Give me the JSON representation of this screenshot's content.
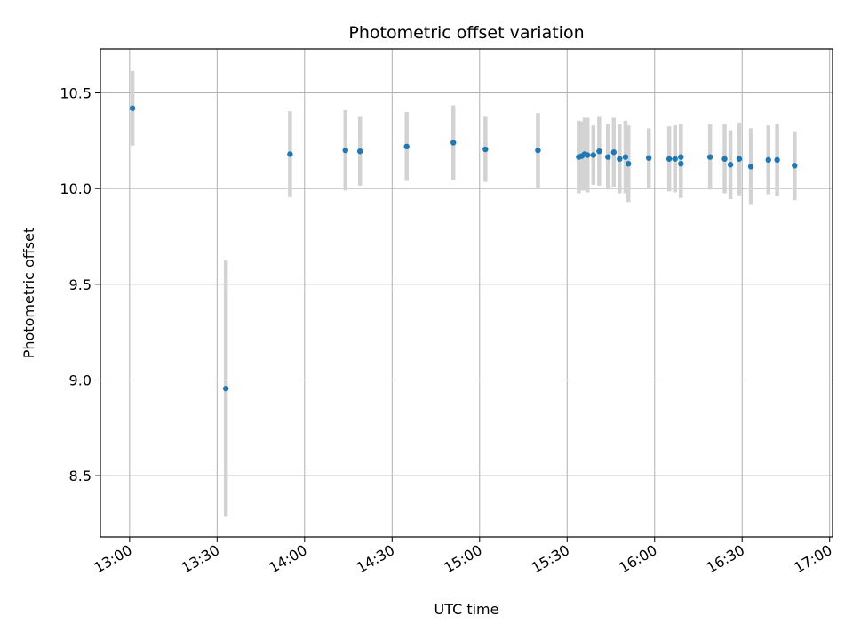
{
  "chart_data": {
    "type": "scatter",
    "title": "Photometric offset variation",
    "xlabel": "UTC time",
    "ylabel": "Photometric offset",
    "x_ticks": [
      "13:00",
      "13:30",
      "14:00",
      "14:30",
      "15:00",
      "15:30",
      "16:00",
      "16:30",
      "17:00"
    ],
    "y_ticks": [
      "8.5",
      "9.0",
      "9.5",
      "10.0",
      "10.5"
    ],
    "xlim": [
      "12:50",
      "16:61"
    ],
    "ylim": [
      8.18,
      10.73
    ],
    "grid": true,
    "marker_color": "#1f77b4",
    "errorbar_color": "#d3d3d3",
    "points": [
      {
        "t": "13:01",
        "y": 10.42,
        "err": 0.195
      },
      {
        "t": "13:33",
        "y": 8.955,
        "err": 0.67
      },
      {
        "t": "13:55",
        "y": 10.18,
        "err": 0.225
      },
      {
        "t": "14:14",
        "y": 10.2,
        "err": 0.21
      },
      {
        "t": "14:19",
        "y": 10.195,
        "err": 0.18
      },
      {
        "t": "14:35",
        "y": 10.22,
        "err": 0.18
      },
      {
        "t": "14:51",
        "y": 10.24,
        "err": 0.195
      },
      {
        "t": "15:02",
        "y": 10.205,
        "err": 0.17
      },
      {
        "t": "15:20",
        "y": 10.2,
        "err": 0.195
      },
      {
        "t": "15:34",
        "y": 10.165,
        "err": 0.19
      },
      {
        "t": "15:35",
        "y": 10.17,
        "err": 0.18
      },
      {
        "t": "15:36",
        "y": 10.18,
        "err": 0.19
      },
      {
        "t": "15:37",
        "y": 10.175,
        "err": 0.195
      },
      {
        "t": "15:39",
        "y": 10.175,
        "err": 0.155
      },
      {
        "t": "15:41",
        "y": 10.195,
        "err": 0.18
      },
      {
        "t": "15:44",
        "y": 10.165,
        "err": 0.17
      },
      {
        "t": "15:46",
        "y": 10.19,
        "err": 0.18
      },
      {
        "t": "15:48",
        "y": 10.155,
        "err": 0.18
      },
      {
        "t": "15:50",
        "y": 10.165,
        "err": 0.19
      },
      {
        "t": "15:51",
        "y": 10.13,
        "err": 0.2
      },
      {
        "t": "15:58",
        "y": 10.16,
        "err": 0.155
      },
      {
        "t": "16:05",
        "y": 10.155,
        "err": 0.17
      },
      {
        "t": "16:07",
        "y": 10.155,
        "err": 0.175
      },
      {
        "t": "16:09",
        "y": 10.13,
        "err": 0.18
      },
      {
        "t": "16:09",
        "y": 10.165,
        "err": 0.175
      },
      {
        "t": "16:19",
        "y": 10.165,
        "err": 0.17
      },
      {
        "t": "16:24",
        "y": 10.155,
        "err": 0.18
      },
      {
        "t": "16:26",
        "y": 10.125,
        "err": 0.18
      },
      {
        "t": "16:29",
        "y": 10.155,
        "err": 0.19
      },
      {
        "t": "16:33",
        "y": 10.115,
        "err": 0.2
      },
      {
        "t": "16:39",
        "y": 10.15,
        "err": 0.18
      },
      {
        "t": "16:42",
        "y": 10.15,
        "err": 0.19
      },
      {
        "t": "16:48",
        "y": 10.12,
        "err": 0.18
      }
    ]
  }
}
